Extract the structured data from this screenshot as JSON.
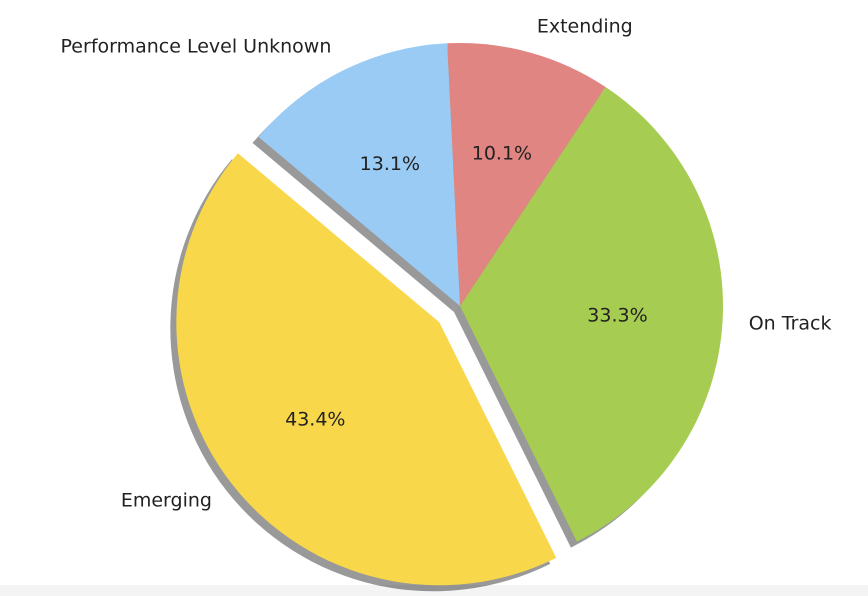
{
  "chart_data": {
    "type": "pie",
    "categories": [
      "Emerging",
      "On Track",
      "Extending",
      "Performance Level Unknown"
    ],
    "values": [
      43.4,
      33.3,
      10.1,
      13.1
    ],
    "value_labels": [
      "43.4%",
      "33.3%",
      "10.1%",
      "13.1%"
    ],
    "colors": [
      "#f9d74a",
      "#a6cc52",
      "#e08582",
      "#99cbf5"
    ],
    "explode": [
      true,
      false,
      false,
      false
    ],
    "shadow": true
  }
}
